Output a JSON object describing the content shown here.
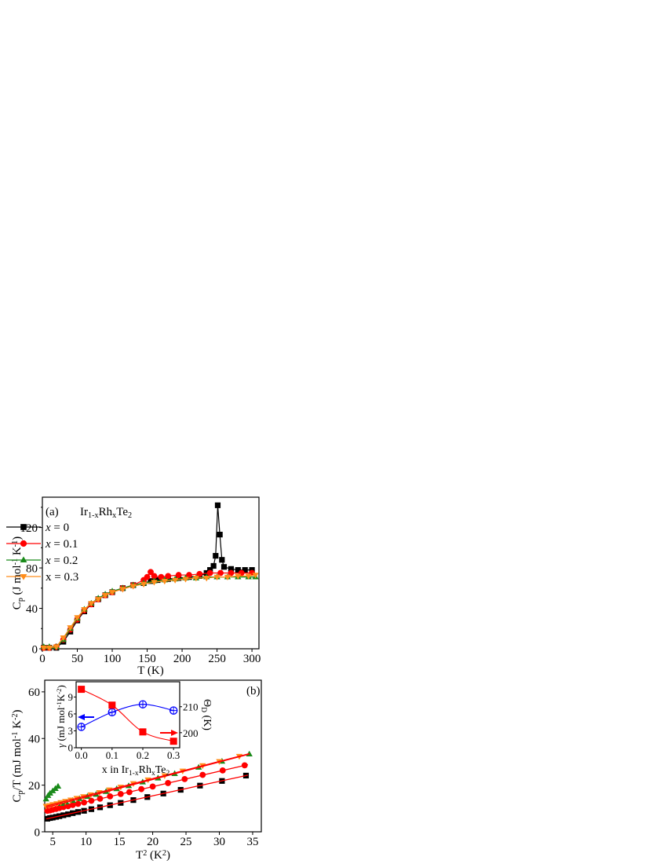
{
  "chart_data": [
    {
      "panel_label": "(a)",
      "type": "line",
      "title_parts": [
        {
          "t": "Ir"
        },
        {
          "t": "1-x",
          "s": "sub"
        },
        {
          "t": "Rh"
        },
        {
          "t": "x",
          "s": "sub"
        },
        {
          "t": "Te"
        },
        {
          "t": "2",
          "s": "sub"
        }
      ],
      "xlabel_parts": [
        {
          "t": "T (K)"
        }
      ],
      "ylabel_parts": [
        {
          "t": "C"
        },
        {
          "t": "p",
          "s": "sub"
        },
        {
          "t": " (J mol"
        },
        {
          "t": "-1",
          "s": "sup"
        },
        {
          "t": " K"
        },
        {
          "t": "-1",
          "s": "sup"
        },
        {
          "t": ")"
        }
      ],
      "xlim": [
        0,
        310
      ],
      "ylim": [
        0,
        150
      ],
      "xticks": [
        "0",
        "50",
        "100",
        "150",
        "200",
        "250",
        "300"
      ],
      "yticks": [
        "0",
        "40",
        "80",
        "120"
      ],
      "legend_position": "top-left",
      "series": [
        {
          "name": "x = 0",
          "italic": true,
          "color": "#000000",
          "marker": "square",
          "x": [
            2,
            10,
            20,
            30,
            40,
            50,
            60,
            70,
            80,
            90,
            100,
            115,
            130,
            145,
            155,
            165,
            180,
            195,
            210,
            225,
            235,
            240,
            245,
            248,
            251,
            254,
            257,
            260,
            270,
            280,
            290,
            300
          ],
          "y": [
            1,
            1,
            1,
            7,
            17,
            28,
            37,
            44,
            49,
            53,
            56,
            60,
            63,
            65,
            67,
            68,
            69,
            70,
            71,
            72,
            75,
            78,
            82,
            92,
            142,
            113,
            88,
            81,
            79,
            78,
            78,
            78
          ]
        },
        {
          "name": "x = 0.1",
          "italic": true,
          "color": "#ff0000",
          "marker": "circle",
          "x": [
            2,
            10,
            20,
            30,
            40,
            50,
            60,
            70,
            80,
            90,
            100,
            115,
            130,
            145,
            150,
            155,
            160,
            170,
            180,
            195,
            210,
            225,
            240,
            255,
            270,
            285,
            300
          ],
          "y": [
            1,
            1,
            2,
            9,
            19,
            29,
            38,
            44,
            49,
            53,
            56,
            60,
            63,
            68,
            71,
            76,
            72,
            71,
            72,
            73,
            73,
            74,
            75,
            75,
            75,
            75,
            75
          ]
        },
        {
          "name": "x = 0.2",
          "italic": true,
          "color": "#1a8a1a",
          "marker": "triangle-up",
          "x": [
            2,
            10,
            20,
            30,
            40,
            50,
            60,
            70,
            80,
            90,
            100,
            115,
            130,
            145,
            160,
            175,
            190,
            205,
            220,
            235,
            250,
            265,
            280,
            295,
            305
          ],
          "y": [
            2,
            2,
            2,
            9,
            20,
            30,
            39,
            45,
            50,
            54,
            57,
            60,
            63,
            65,
            67,
            68,
            69,
            70,
            70,
            71,
            71,
            71,
            71,
            71,
            71
          ]
        },
        {
          "name": "x = 0.3",
          "italic": false,
          "color": "#ff8c1a",
          "marker": "triangle-down",
          "x": [
            2,
            10,
            20,
            30,
            40,
            50,
            60,
            70,
            80,
            90,
            100,
            115,
            130,
            145,
            160,
            175,
            190,
            205,
            220,
            235,
            250,
            265,
            280,
            295,
            305
          ],
          "y": [
            1,
            1,
            2,
            11,
            21,
            31,
            39,
            45,
            49,
            53,
            56,
            59,
            62,
            64,
            66,
            67,
            68,
            69,
            70,
            70,
            71,
            71,
            72,
            72,
            73
          ]
        }
      ]
    },
    {
      "panel_label": "(b)",
      "type": "scatter",
      "xlabel_parts": [
        {
          "t": "T"
        },
        {
          "t": "2",
          "s": "sup"
        },
        {
          "t": " (K"
        },
        {
          "t": "2",
          "s": "sup"
        },
        {
          "t": ")"
        }
      ],
      "ylabel_parts": [
        {
          "t": "C"
        },
        {
          "t": "p",
          "s": "sub"
        },
        {
          "t": "/T (mJ mol"
        },
        {
          "t": "-1",
          "s": "sup"
        },
        {
          "t": " K"
        },
        {
          "t": "-2",
          "s": "sup"
        },
        {
          "t": ")"
        }
      ],
      "xlim": [
        3.8,
        36.3
      ],
      "ylim": [
        0,
        65
      ],
      "xticks": [
        "5",
        "10",
        "15",
        "20",
        "25",
        "30",
        "35"
      ],
      "yticks": [
        "0",
        "20",
        "40",
        "60"
      ],
      "fit_color": "#ff0000",
      "series": [
        {
          "color": "#000000",
          "marker": "square",
          "x": [
            4.2,
            4.6,
            5.0,
            5.5,
            6.0,
            6.6,
            7.3,
            8.0,
            8.8,
            9.7,
            10.8,
            12.1,
            13.6,
            15.2,
            17.1,
            19.2,
            21.6,
            24.2,
            27.1,
            30.4,
            34.0
          ],
          "y": [
            5.6,
            5.9,
            6.1,
            6.4,
            6.7,
            7.1,
            7.5,
            8.0,
            8.5,
            9.0,
            9.7,
            10.5,
            11.4,
            12.4,
            13.6,
            14.9,
            16.4,
            18.0,
            19.8,
            21.8,
            24.1
          ],
          "fit": {
            "x": [
              4,
              34.3
            ],
            "y": [
              5.5,
              24.3
            ]
          }
        },
        {
          "color": "#ff0000",
          "marker": "circle",
          "x": [
            4.2,
            4.6,
            5.0,
            5.5,
            6.0,
            6.6,
            7.3,
            8.0,
            8.8,
            9.7,
            10.8,
            12.1,
            13.6,
            15.2,
            16.5,
            18.3,
            20.0,
            22.3,
            24.8,
            27.5,
            30.5,
            33.8
          ],
          "y": [
            9.0,
            9.2,
            9.5,
            9.8,
            10.2,
            10.6,
            11.0,
            11.5,
            12.0,
            12.6,
            13.3,
            14.2,
            15.2,
            16.2,
            17.0,
            18.3,
            19.4,
            20.9,
            22.6,
            24.4,
            26.3,
            28.5
          ],
          "fit": {
            "x": [
              4,
              34.3
            ],
            "y": [
              8.8,
              28.8
            ]
          }
        },
        {
          "color": "#1a8a1a",
          "marker": "triangle-up",
          "x": [
            4.0,
            4.3,
            4.6,
            5.0,
            5.4,
            5.8,
            6.3,
            7.0,
            8.0,
            9.0,
            10.2,
            11.5,
            13.0,
            14.6,
            16.4,
            18.5,
            20.8,
            23.3,
            26.9,
            30.4,
            34.5
          ],
          "y": [
            14,
            15.5,
            16.5,
            17.5,
            18.5,
            19.5,
            12.1,
            12.7,
            13.4,
            14.2,
            15.1,
            16.0,
            17.2,
            18.4,
            19.7,
            21.3,
            23.0,
            24.9,
            27.6,
            30.2,
            33.3
          ],
          "fit": {
            "x": [
              4,
              34.5
            ],
            "y": [
              10.4,
              33.3
            ]
          }
        },
        {
          "color": "#ff8c1a",
          "marker": "triangle-down",
          "x": [
            4.0,
            4.5,
            5.0,
            5.6,
            6.2,
            6.9,
            7.7,
            8.6,
            9.6,
            10.7,
            12.0,
            13.5,
            15.2,
            17.1,
            19.3,
            21.8,
            24.5,
            27.5,
            30.0,
            33.0
          ],
          "y": [
            11.0,
            11.3,
            11.7,
            12.1,
            12.6,
            13.1,
            13.7,
            14.4,
            15.1,
            15.9,
            16.9,
            18.0,
            19.2,
            20.7,
            22.3,
            24.1,
            26.1,
            28.4,
            30.2,
            32.4
          ],
          "fit": {
            "x": [
              4,
              34.5
            ],
            "y": [
              11.0,
              33.5
            ]
          }
        }
      ]
    },
    {
      "type": "line",
      "inset_of": "(b)",
      "xlabel_parts": [
        {
          "t": "x in Ir"
        },
        {
          "t": "1-x",
          "s": "sub"
        },
        {
          "t": "Rh"
        },
        {
          "t": "x",
          "s": "sub"
        },
        {
          "t": "Te"
        },
        {
          "t": "2",
          "s": "sub"
        }
      ],
      "ylabel_left_parts": [
        {
          "t": "γ",
          "i": true
        },
        {
          "t": " (mJ mol"
        },
        {
          "t": "-1",
          "s": "sup"
        },
        {
          "t": "K"
        },
        {
          "t": "-2",
          "s": "sup"
        },
        {
          "t": ")"
        }
      ],
      "ylabel_right_parts": [
        {
          "t": "Θ"
        },
        {
          "t": "D",
          "s": "sub"
        },
        {
          "t": " (K)"
        }
      ],
      "xlim": [
        -0.017,
        0.32
      ],
      "ylim_left": [
        0,
        11.7
      ],
      "ylim_right": [
        194.2,
        219.6
      ],
      "xticks": [
        "0.0",
        "0.1",
        "0.2",
        "0.3"
      ],
      "yticks_left": [
        "0",
        "3",
        "6",
        "9"
      ],
      "yticks_right": [
        "200",
        "210"
      ],
      "series": [
        {
          "axis": "left",
          "color": "#0000ff",
          "marker": "circle-plus-open",
          "x": [
            0.0,
            0.1,
            0.2,
            0.3
          ],
          "y": [
            3.7,
            6.3,
            7.7,
            6.6
          ]
        },
        {
          "axis": "right",
          "color": "#ff0000",
          "marker": "square",
          "x": [
            0.0,
            0.1,
            0.2,
            0.3
          ],
          "y": [
            216.7,
            210.6,
            200.3,
            196.7
          ]
        }
      ],
      "arrows": [
        {
          "color": "#0000ff",
          "points_to": "left"
        },
        {
          "color": "#ff0000",
          "points_to": "right"
        }
      ]
    }
  ]
}
